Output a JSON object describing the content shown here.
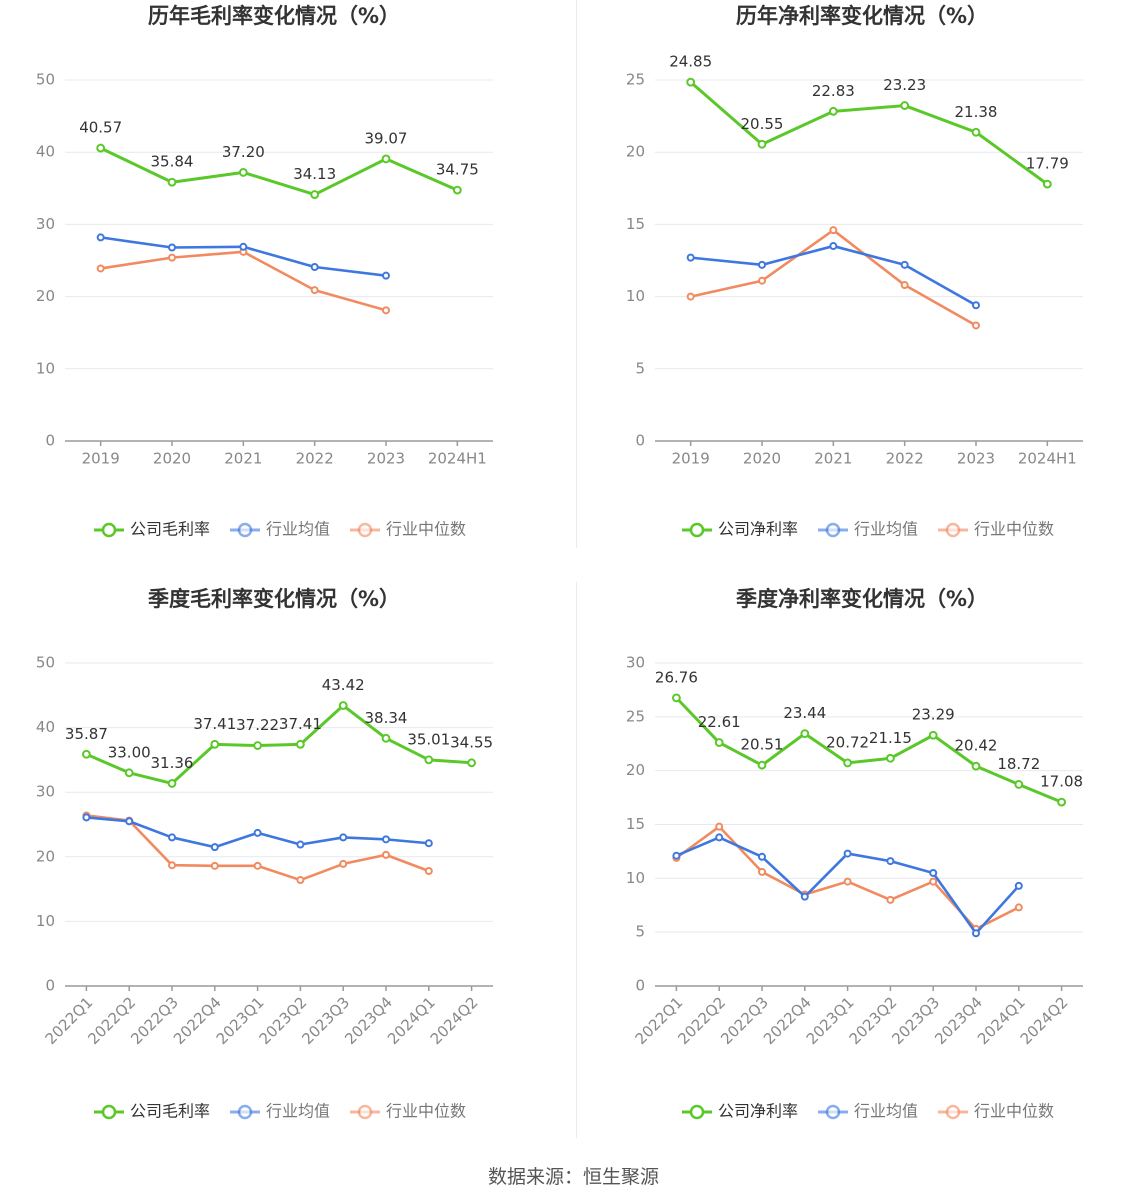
{
  "colors": {
    "company": "#5ac828",
    "industry_avg": "#3e77e0",
    "industry_median": "#f28a60",
    "axis": "#9a9a9a",
    "grid": "#e7e9f0",
    "text": "#333333",
    "tick_text": "#888888"
  },
  "source_label": "数据来源：恒生聚源",
  "chart_data": [
    {
      "type": "line",
      "title": "历年毛利率变化情况（%）",
      "categories": [
        "2019",
        "2020",
        "2021",
        "2022",
        "2023",
        "2024H1"
      ],
      "ylim": [
        0,
        50
      ],
      "yticks": [
        0,
        10,
        20,
        30,
        40,
        50
      ],
      "grid": true,
      "legend": "bottom",
      "series": [
        {
          "name": "公司毛利率",
          "values": [
            40.57,
            35.84,
            37.2,
            34.13,
            39.07,
            34.75
          ],
          "labels": [
            "40.57",
            "35.84",
            "37.20",
            "34.13",
            "39.07",
            "34.75"
          ]
        },
        {
          "name": "行业均值",
          "values": [
            28.2,
            26.8,
            26.9,
            24.1,
            22.9,
            null
          ]
        },
        {
          "name": "行业中位数",
          "values": [
            23.9,
            25.4,
            26.2,
            20.9,
            18.1,
            null
          ]
        }
      ]
    },
    {
      "type": "line",
      "title": "历年净利率变化情况（%）",
      "categories": [
        "2019",
        "2020",
        "2021",
        "2022",
        "2023",
        "2024H1"
      ],
      "ylim": [
        0,
        25
      ],
      "yticks": [
        0,
        5,
        10,
        15,
        20,
        25
      ],
      "grid": true,
      "legend": "bottom",
      "series": [
        {
          "name": "公司净利率",
          "values": [
            24.85,
            20.55,
            22.83,
            23.23,
            21.38,
            17.79
          ],
          "labels": [
            "24.85",
            "20.55",
            "22.83",
            "23.23",
            "21.38",
            "17.79"
          ]
        },
        {
          "name": "行业均值",
          "values": [
            12.7,
            12.2,
            13.5,
            12.2,
            9.4,
            null
          ]
        },
        {
          "name": "行业中位数",
          "values": [
            10.0,
            11.1,
            14.6,
            10.8,
            8.0,
            null
          ]
        }
      ]
    },
    {
      "type": "line",
      "title": "季度毛利率变化情况（%）",
      "categories": [
        "2022Q1",
        "2022Q2",
        "2022Q3",
        "2022Q4",
        "2023Q1",
        "2023Q2",
        "2023Q3",
        "2023Q4",
        "2024Q1",
        "2024Q2"
      ],
      "ylim": [
        0,
        50
      ],
      "yticks": [
        0,
        10,
        20,
        30,
        40,
        50
      ],
      "grid": true,
      "legend": "bottom",
      "series": [
        {
          "name": "公司毛利率",
          "values": [
            35.87,
            33.0,
            31.36,
            37.41,
            37.22,
            37.41,
            43.42,
            38.34,
            35.01,
            34.55
          ],
          "labels": [
            "35.87",
            "33.00",
            "31.36",
            "37.41",
            "37.22",
            "37.41",
            "43.42",
            "38.34",
            "35.01",
            "34.55"
          ]
        },
        {
          "name": "行业均值",
          "values": [
            26.1,
            25.5,
            23.0,
            21.5,
            23.7,
            21.9,
            23.0,
            22.7,
            22.1,
            null
          ]
        },
        {
          "name": "行业中位数",
          "values": [
            26.4,
            25.6,
            18.7,
            18.6,
            18.6,
            16.4,
            18.9,
            20.3,
            17.8,
            null
          ]
        }
      ]
    },
    {
      "type": "line",
      "title": "季度净利率变化情况（%）",
      "categories": [
        "2022Q1",
        "2022Q2",
        "2022Q3",
        "2022Q4",
        "2023Q1",
        "2023Q2",
        "2023Q3",
        "2023Q4",
        "2024Q1",
        "2024Q2"
      ],
      "ylim": [
        0,
        30
      ],
      "yticks": [
        0,
        5,
        10,
        15,
        20,
        25,
        30
      ],
      "grid": true,
      "legend": "bottom",
      "series": [
        {
          "name": "公司净利率",
          "values": [
            26.76,
            22.61,
            20.51,
            23.44,
            20.72,
            21.15,
            23.29,
            20.42,
            18.72,
            17.08
          ],
          "labels": [
            "26.76",
            "22.61",
            "20.51",
            "23.44",
            "20.72",
            "21.15",
            "23.29",
            "20.42",
            "18.72",
            "17.08"
          ]
        },
        {
          "name": "行业均值",
          "values": [
            12.1,
            13.8,
            12.0,
            8.3,
            12.3,
            11.6,
            10.5,
            4.9,
            9.3,
            null
          ]
        },
        {
          "name": "行业中位数",
          "values": [
            11.9,
            14.8,
            10.6,
            8.5,
            9.7,
            8.0,
            9.7,
            5.3,
            7.3,
            null
          ]
        }
      ]
    }
  ]
}
